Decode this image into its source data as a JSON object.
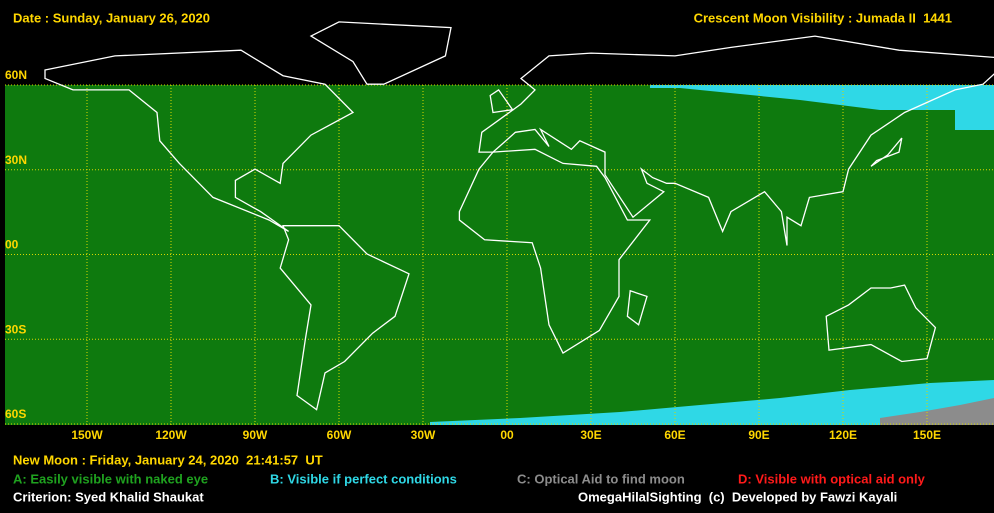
{
  "header": {
    "date": "Date : Sunday, January 26, 2020",
    "title": "Crescent Moon Visibility : Jumada II  1441"
  },
  "map": {
    "lat_labels": [
      "60N",
      "30N",
      "00",
      "30S",
      "60S"
    ],
    "lon_labels": [
      "150W",
      "120W",
      "90W",
      "60W",
      "30W",
      "00",
      "30E",
      "60E",
      "90E",
      "120E",
      "150E"
    ]
  },
  "footer": {
    "new_moon": "New Moon : Friday, January 24, 2020  21:41:57  UT",
    "legend": [
      {
        "label": "A: Easily visible with naked eye",
        "color": "#1fa21f"
      },
      {
        "label": "B: Visible if perfect conditions",
        "color": "#2fd8e6"
      },
      {
        "label": "C: Optical Aid to find moon",
        "color": "#8c8c8c"
      },
      {
        "label": "D: Visible with optical aid only",
        "color": "#ff1a1a"
      }
    ],
    "criterion": "Criterion: Syed Khalid Shaukat",
    "credit": "OmegaHilalSighting  (c)  Developed by Fawzi Kayali"
  }
}
